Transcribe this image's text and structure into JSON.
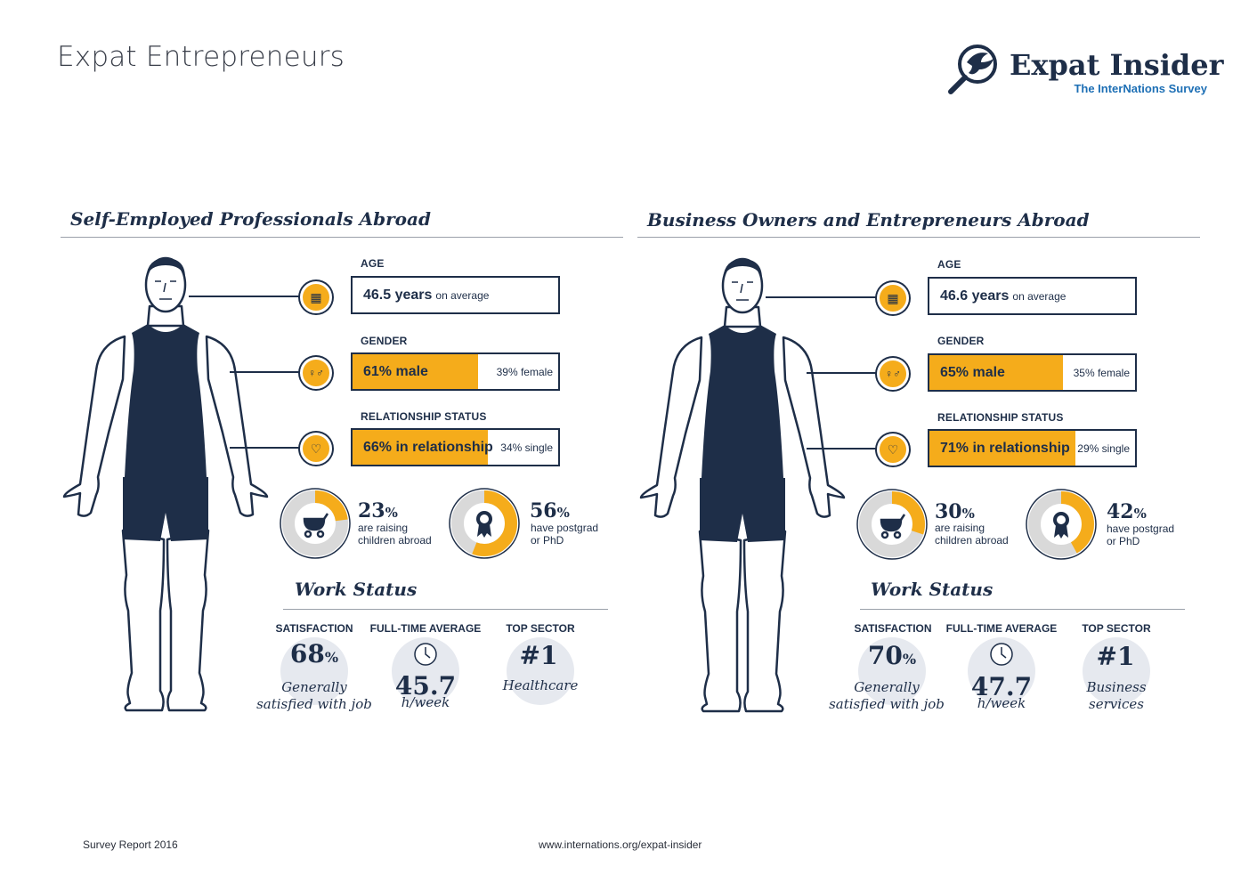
{
  "page_title": "Expat Entrepreneurs",
  "logo": {
    "name": "Expat Insider",
    "subtitle": "The InterNations Survey",
    "icon": "magnifier-bird-icon"
  },
  "footer": {
    "left": "Survey Report 2016",
    "center": "www.internations.org/expat-insider"
  },
  "colors": {
    "accent": "#f5ac1b",
    "navy": "#1e2e48",
    "grey": "#d9d9d9",
    "circle_bg": "#e6e9ef"
  },
  "panels": [
    {
      "title": "Self-Employed Professionals Abroad",
      "age": {
        "label": "AGE",
        "value": "46.5 years",
        "suffix": "on average",
        "icon": "calendar-icon"
      },
      "gender": {
        "label": "GENDER",
        "main": "61% male",
        "rest": "39% female",
        "fraction": 0.61,
        "icon": "gender-icon"
      },
      "relationship": {
        "label": "RELATIONSHIP STATUS",
        "main": "66% in relationship",
        "rest": "34% single",
        "fraction": 0.66,
        "icon": "heart-icon"
      },
      "children": {
        "number": "23",
        "unit": "%",
        "line1": "are raising",
        "line2": "children abroad",
        "fraction": 0.23,
        "icon": "stroller-icon"
      },
      "education": {
        "number": "56",
        "unit": "%",
        "line1": "have postgrad",
        "line2": "or PhD",
        "fraction": 0.56,
        "icon": "award-icon"
      },
      "work_status": {
        "title": "Work Status",
        "satisfaction": {
          "label": "SATISFACTION",
          "number": "68",
          "unit": "%",
          "line1": "Generally",
          "line2": "satisfied with job"
        },
        "fulltime": {
          "label": "FULL-TIME AVERAGE",
          "number": "45.7",
          "line1": "h/week",
          "icon": "clock-icon"
        },
        "sector": {
          "label": "TOP SECTOR",
          "number": "#1",
          "line1": "Healthcare",
          "line2": ""
        }
      }
    },
    {
      "title": "Business Owners and Entrepreneurs Abroad",
      "age": {
        "label": "AGE",
        "value": "46.6 years",
        "suffix": "on average",
        "icon": "calendar-icon"
      },
      "gender": {
        "label": "GENDER",
        "main": "65% male",
        "rest": "35% female",
        "fraction": 0.65,
        "icon": "gender-icon"
      },
      "relationship": {
        "label": "RELATIONSHIP STATUS",
        "main": "71% in relationship",
        "rest": "29% single",
        "fraction": 0.71,
        "icon": "heart-icon"
      },
      "children": {
        "number": "30",
        "unit": "%",
        "line1": "are raising",
        "line2": "children abroad",
        "fraction": 0.3,
        "icon": "stroller-icon"
      },
      "education": {
        "number": "42",
        "unit": "%",
        "line1": "have postgrad",
        "line2": "or PhD",
        "fraction": 0.42,
        "icon": "award-icon"
      },
      "work_status": {
        "title": "Work Status",
        "satisfaction": {
          "label": "SATISFACTION",
          "number": "70",
          "unit": "%",
          "line1": "Generally",
          "line2": "satisfied with job"
        },
        "fulltime": {
          "label": "FULL-TIME AVERAGE",
          "number": "47.7",
          "line1": "h/week",
          "icon": "clock-icon"
        },
        "sector": {
          "label": "TOP SECTOR",
          "number": "#1",
          "line1": "Business",
          "line2": "services"
        }
      }
    }
  ]
}
